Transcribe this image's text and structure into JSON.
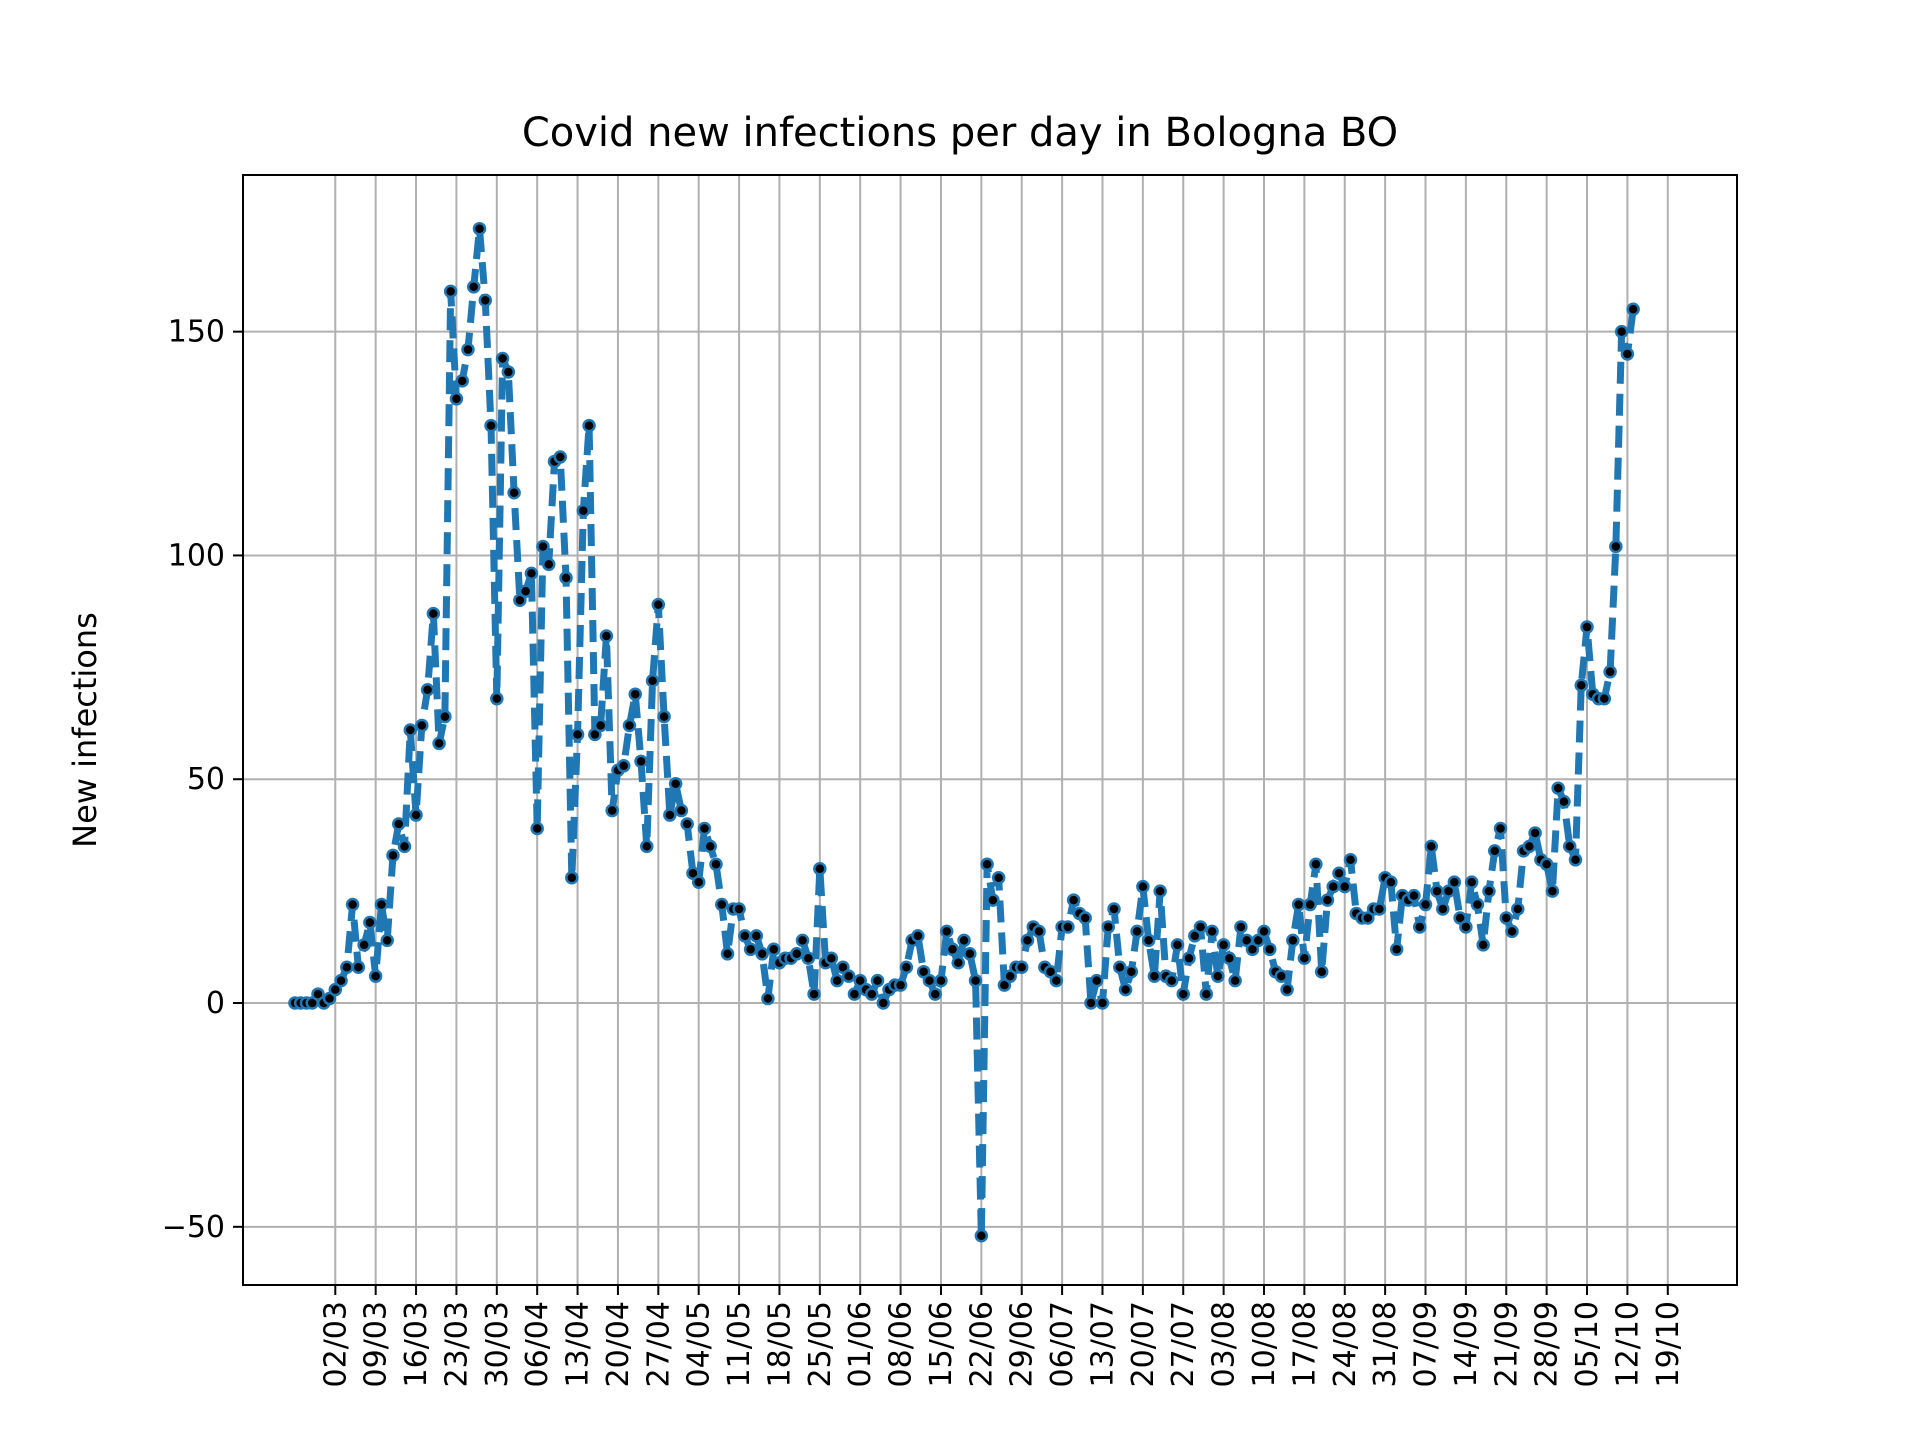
{
  "chart_data": {
    "type": "line",
    "title": "Covid new infections per day in Bologna BO",
    "xlabel": "",
    "ylabel": "New infections",
    "ylim": [
      -63,
      185
    ],
    "yticks": [
      -50,
      0,
      50,
      100,
      150
    ],
    "ytick_labels": [
      "−50",
      "0",
      "50",
      "100",
      "150"
    ],
    "xticks": [
      "2020-03-02",
      "2020-03-09",
      "2020-03-16",
      "2020-03-23",
      "2020-03-30",
      "2020-04-06",
      "2020-04-13",
      "2020-04-20",
      "2020-04-27",
      "2020-05-04",
      "2020-05-11",
      "2020-05-18",
      "2020-05-25",
      "2020-06-01",
      "2020-06-08",
      "2020-06-15",
      "2020-06-22",
      "2020-06-29",
      "2020-07-06",
      "2020-07-13",
      "2020-07-20",
      "2020-07-27",
      "2020-08-03",
      "2020-08-10",
      "2020-08-17",
      "2020-08-24",
      "2020-08-31",
      "2020-09-07",
      "2020-09-14",
      "2020-09-21",
      "2020-09-28",
      "2020-10-05",
      "2020-10-12",
      "2020-10-19"
    ],
    "xtick_labels": [
      "02/03",
      "09/03",
      "16/03",
      "23/03",
      "30/03",
      "06/04",
      "13/04",
      "20/04",
      "27/04",
      "04/05",
      "11/05",
      "18/05",
      "25/05",
      "01/06",
      "08/06",
      "15/06",
      "22/06",
      "29/06",
      "06/07",
      "13/07",
      "20/07",
      "27/07",
      "03/08",
      "10/08",
      "17/08",
      "24/08",
      "31/08",
      "07/09",
      "14/09",
      "21/09",
      "28/09",
      "05/10",
      "12/10",
      "19/10"
    ],
    "xlim": [
      "2020-02-15",
      "2020-10-31"
    ],
    "grid": true,
    "series": [
      {
        "color": "#1f77b4",
        "linestyle": "dashed",
        "marker_color": "#000000",
        "start_date": "2020-02-24",
        "values": [
          0,
          0,
          0,
          0,
          2,
          0,
          1,
          3,
          5,
          8,
          22,
          8,
          13,
          18,
          6,
          22,
          14,
          33,
          40,
          35,
          61,
          42,
          62,
          70,
          87,
          58,
          64,
          159,
          135,
          139,
          146,
          160,
          173,
          157,
          129,
          68,
          144,
          141,
          114,
          90,
          92,
          96,
          39,
          102,
          98,
          121,
          122,
          95,
          28,
          60,
          110,
          129,
          60,
          62,
          82,
          43,
          52,
          53,
          62,
          69,
          54,
          35,
          72,
          89,
          64,
          42,
          49,
          43,
          40,
          29,
          27,
          39,
          35,
          31,
          22,
          11,
          21,
          21,
          15,
          12,
          15,
          11,
          1,
          12,
          9,
          10,
          10,
          11,
          14,
          10,
          2,
          30,
          9,
          10,
          5,
          8,
          6,
          2,
          5,
          3,
          2,
          5,
          0,
          3,
          4,
          4,
          8,
          14,
          15,
          7,
          5,
          2,
          5,
          16,
          12,
          9,
          14,
          11,
          5,
          -52,
          31,
          23,
          28,
          4,
          6,
          8,
          8,
          14,
          17,
          16,
          8,
          7,
          5,
          17,
          17,
          23,
          20,
          19,
          0,
          5,
          0,
          17,
          21,
          8,
          3,
          7,
          16,
          26,
          14,
          6,
          25,
          6,
          5,
          13,
          2,
          10,
          15,
          17,
          2,
          16,
          6,
          13,
          10,
          5,
          17,
          14,
          12,
          14,
          16,
          12,
          7,
          6,
          3,
          14,
          22,
          10,
          22,
          31,
          7,
          23,
          26,
          29,
          26,
          32,
          20,
          19,
          19,
          21,
          21,
          28,
          27,
          12,
          24,
          23,
          24,
          17,
          22,
          35,
          25,
          21,
          25,
          27,
          19,
          17,
          27,
          22,
          13,
          25,
          34,
          39,
          19,
          16,
          21,
          34,
          35,
          38,
          32,
          31,
          25,
          48,
          45,
          35,
          32,
          71,
          84,
          69,
          68,
          68,
          74,
          102,
          150,
          145,
          155
        ]
      }
    ]
  }
}
